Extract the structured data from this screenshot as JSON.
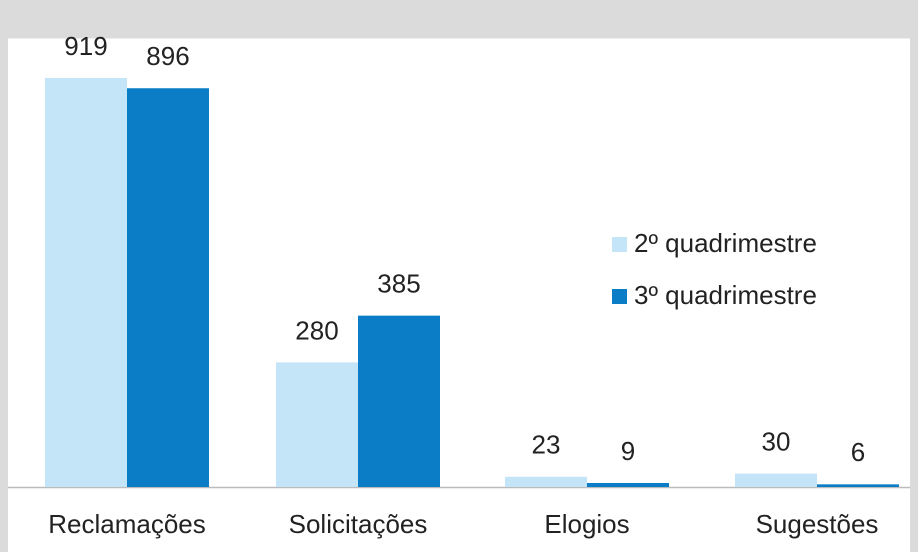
{
  "chart_data": {
    "type": "bar",
    "categories": [
      "Reclamações",
      "Solicitações",
      "Elogios",
      "Sugestões"
    ],
    "series": [
      {
        "name": "2º quadrimestre",
        "color": "#c4e4f8",
        "values": [
          919,
          280,
          23,
          30
        ]
      },
      {
        "name": "3º quadrimestre",
        "color": "#0b7dc6",
        "values": [
          896,
          385,
          9,
          6
        ]
      }
    ],
    "legend": "right"
  }
}
